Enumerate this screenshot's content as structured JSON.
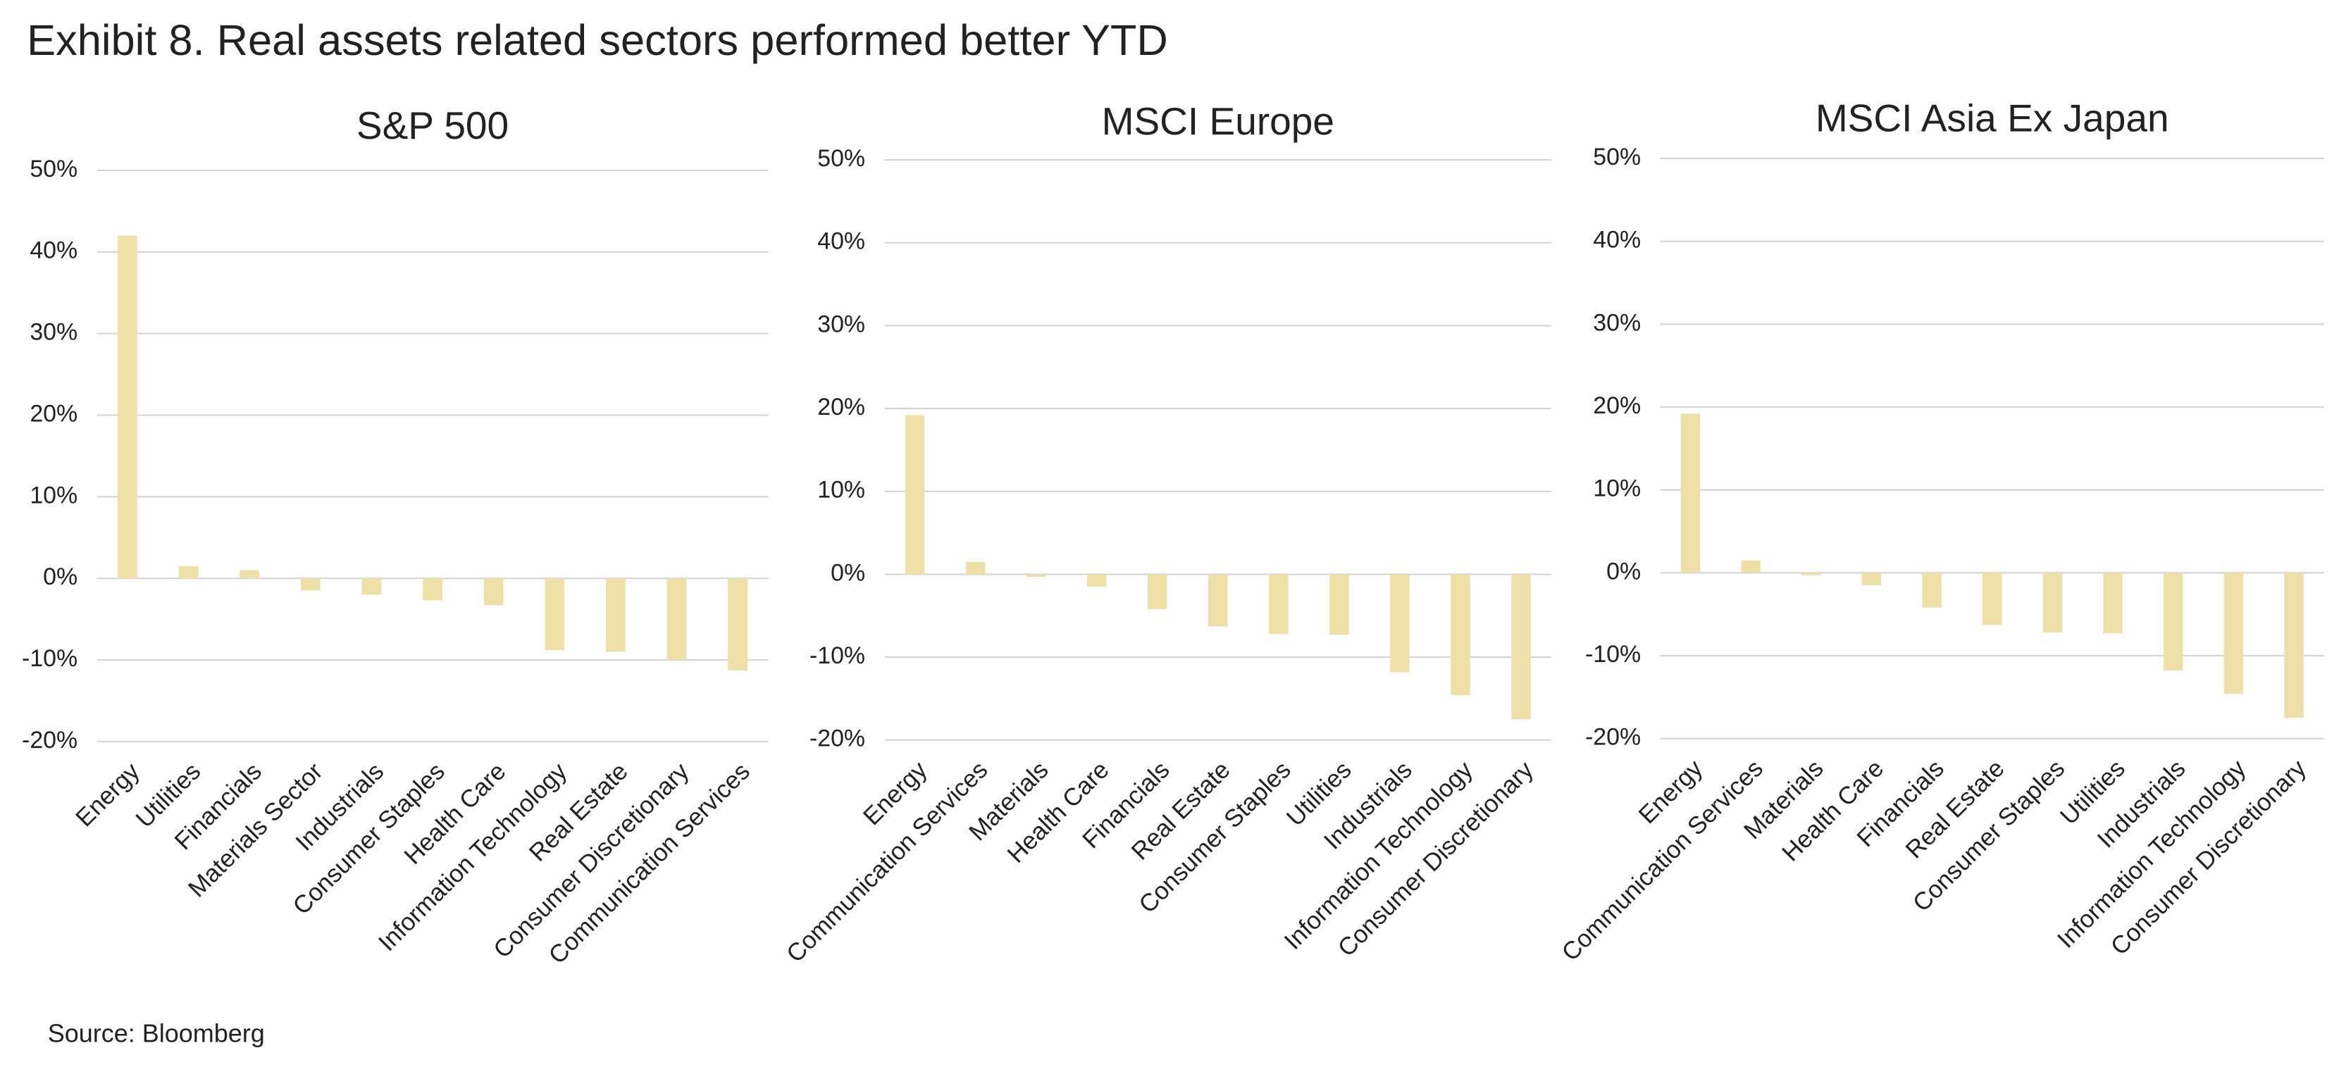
{
  "title": "Exhibit 8. Real assets related sectors performed better YTD",
  "source": "Source: Bloomberg",
  "chart_data": [
    {
      "type": "bar",
      "title": "S&P 500",
      "color": "#efe0a8",
      "grid": true,
      "categories": [
        "Energy",
        "Utilities",
        "Financials",
        "Materials Sector",
        "Industrials",
        "Consumer Staples",
        "Health Care",
        "Information Technology",
        "Real Estate",
        "Consumer Discretionary",
        "Communication Services"
      ],
      "values": [
        42,
        1.5,
        1,
        -1.5,
        -2,
        -2.7,
        -3.3,
        -8.8,
        -9,
        -10,
        -11.3
      ],
      "ylim": [
        -20,
        50
      ],
      "yticks": [
        {
          "value": -20,
          "label": "-20%"
        },
        {
          "value": -10,
          "label": "-10%"
        },
        {
          "value": 0,
          "label": "0%"
        },
        {
          "value": 10,
          "label": "10%"
        },
        {
          "value": 20,
          "label": "20%"
        },
        {
          "value": 30,
          "label": "30%"
        },
        {
          "value": 40,
          "label": "40%"
        },
        {
          "value": 50,
          "label": "50%"
        }
      ]
    },
    {
      "type": "bar",
      "title": "MSCI Europe",
      "color": "#efe0a8",
      "grid": true,
      "categories": [
        "Energy",
        "Communication Services",
        "Materials",
        "Health Care",
        "Financials",
        "Real Estate",
        "Consumer Staples",
        "Utilities",
        "Industrials",
        "Information Technology",
        "Consumer Discretionary"
      ],
      "values": [
        19.2,
        1.5,
        -0.3,
        -1.5,
        -4.2,
        -6.3,
        -7.2,
        -7.3,
        -11.8,
        -14.6,
        -17.5
      ],
      "ylim": [
        -20,
        50
      ],
      "yticks": [
        {
          "value": -20,
          "label": "-20%"
        },
        {
          "value": -10,
          "label": "-10%"
        },
        {
          "value": 0,
          "label": "0%"
        },
        {
          "value": 10,
          "label": "10%"
        },
        {
          "value": 20,
          "label": "20%"
        },
        {
          "value": 30,
          "label": "30%"
        },
        {
          "value": 40,
          "label": "40%"
        },
        {
          "value": 50,
          "label": "50%"
        }
      ]
    },
    {
      "type": "bar",
      "title": "MSCI Asia Ex Japan",
      "color": "#efe0a8",
      "grid": true,
      "categories": [
        "Energy",
        "Communication Services",
        "Materials",
        "Health Care",
        "Financials",
        "Real Estate",
        "Consumer Staples",
        "Utilities",
        "Industrials",
        "Information Technology",
        "Consumer Discretionary"
      ],
      "values": [
        19.2,
        1.5,
        -0.3,
        -1.5,
        -4.2,
        -6.3,
        -7.2,
        -7.3,
        -11.8,
        -14.6,
        -17.5
      ],
      "ylim": [
        -20,
        50
      ],
      "yticks": [
        {
          "value": -20,
          "label": "-20%"
        },
        {
          "value": -10,
          "label": "-10%"
        },
        {
          "value": 0,
          "label": "0%"
        },
        {
          "value": 10,
          "label": "10%"
        },
        {
          "value": 20,
          "label": "20%"
        },
        {
          "value": 30,
          "label": "30%"
        },
        {
          "value": 40,
          "label": "40%"
        },
        {
          "value": 50,
          "label": "50%"
        }
      ]
    }
  ]
}
